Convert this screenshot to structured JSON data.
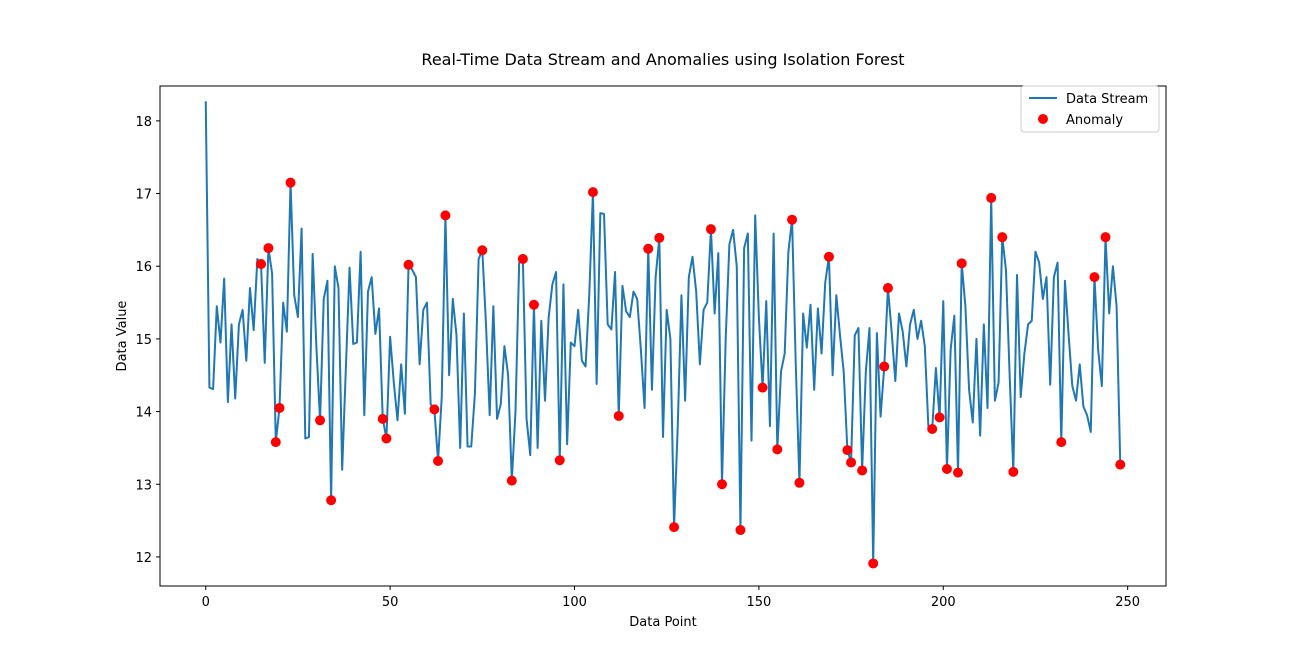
{
  "chart_data": {
    "type": "line",
    "title": "Real-Time Data Stream and Anomalies using Isolation Forest",
    "xlabel": "Data Point",
    "ylabel": "Data Value",
    "xlim": [
      -12.4,
      260.4
    ],
    "ylim": [
      11.6,
      18.48
    ],
    "xticks": [
      0,
      50,
      100,
      150,
      200,
      250
    ],
    "yticks": [
      12,
      13,
      14,
      15,
      16,
      17,
      18
    ],
    "legend": "upper right",
    "series": [
      {
        "name": "Data Stream",
        "type": "line",
        "color": "#1f77b4",
        "x": [
          0,
          1,
          2,
          3,
          4,
          5,
          6,
          7,
          8,
          9,
          10,
          11,
          12,
          13,
          14,
          15,
          16,
          17,
          18,
          19,
          20,
          21,
          22,
          23,
          24,
          25,
          26,
          27,
          28,
          29,
          30,
          31,
          32,
          33,
          34,
          35,
          36,
          37,
          38,
          39,
          40,
          41,
          42,
          43,
          44,
          45,
          46,
          47,
          48,
          49,
          50,
          51,
          52,
          53,
          54,
          55,
          56,
          57,
          58,
          59,
          60,
          61,
          62,
          63,
          64,
          65,
          66,
          67,
          68,
          69,
          70,
          71,
          72,
          73,
          74,
          75,
          76,
          77,
          78,
          79,
          80,
          81,
          82,
          83,
          84,
          85,
          86,
          87,
          88,
          89,
          90,
          91,
          92,
          93,
          94,
          95,
          96,
          97,
          98,
          99,
          100,
          101,
          102,
          103,
          104,
          105,
          106,
          107,
          108,
          109,
          110,
          111,
          112,
          113,
          114,
          115,
          116,
          117,
          118,
          119,
          120,
          121,
          122,
          123,
          124,
          125,
          126,
          127,
          128,
          129,
          130,
          131,
          132,
          133,
          134,
          135,
          136,
          137,
          138,
          139,
          140,
          141,
          142,
          143,
          144,
          145,
          146,
          147,
          148,
          149,
          150,
          151,
          152,
          153,
          154,
          155,
          156,
          157,
          158,
          159,
          160,
          161,
          162,
          163,
          164,
          165,
          166,
          167,
          168,
          169,
          170,
          171,
          172,
          173,
          174,
          175,
          176,
          177,
          178,
          179,
          180,
          181,
          182,
          183,
          184,
          185,
          186,
          187,
          188,
          189,
          190,
          191,
          192,
          193,
          194,
          195,
          196,
          197,
          198,
          199,
          200,
          201,
          202,
          203,
          204,
          205,
          206,
          207,
          208,
          209,
          210,
          211,
          212,
          213,
          214,
          215,
          216,
          217,
          218,
          219,
          220,
          221,
          222,
          223,
          224,
          225,
          226,
          227,
          228,
          229,
          230,
          231,
          232,
          233,
          234,
          235,
          236,
          237,
          238,
          239,
          240,
          241,
          242,
          243,
          244,
          245,
          246,
          247,
          248
        ],
        "values": [
          18.27,
          14.33,
          14.31,
          15.45,
          14.95,
          15.83,
          14.13,
          15.2,
          14.18,
          15.2,
          15.4,
          14.7,
          15.7,
          15.12,
          16.1,
          16.03,
          14.67,
          16.25,
          15.9,
          13.58,
          14.05,
          15.5,
          15.1,
          17.15,
          15.6,
          15.3,
          16.52,
          13.63,
          13.65,
          16.17,
          14.9,
          13.88,
          15.55,
          15.8,
          12.78,
          16.0,
          15.7,
          13.2,
          14.6,
          15.98,
          14.93,
          14.95,
          16.2,
          13.95,
          15.65,
          15.85,
          15.07,
          15.42,
          13.9,
          13.63,
          15.03,
          14.4,
          13.88,
          14.65,
          13.97,
          16.02,
          15.95,
          15.85,
          14.65,
          15.4,
          15.5,
          14.1,
          14.03,
          13.32,
          14.2,
          16.7,
          14.5,
          15.55,
          15.05,
          13.5,
          15.35,
          13.52,
          13.52,
          14.25,
          16.1,
          16.22,
          15.2,
          13.95,
          15.45,
          13.9,
          14.1,
          14.9,
          14.5,
          13.05,
          14.0,
          16.05,
          16.1,
          13.9,
          13.4,
          15.47,
          13.5,
          15.25,
          14.15,
          15.3,
          15.75,
          15.92,
          13.33,
          15.75,
          13.55,
          14.95,
          14.9,
          15.4,
          14.7,
          14.62,
          15.6,
          17.02,
          14.38,
          16.73,
          16.72,
          15.2,
          15.13,
          15.92,
          13.94,
          15.73,
          15.38,
          15.3,
          15.65,
          15.55,
          14.85,
          14.05,
          16.24,
          14.3,
          15.85,
          16.39,
          13.65,
          15.4,
          15.0,
          12.41,
          13.8,
          15.6,
          14.15,
          15.85,
          16.13,
          15.65,
          14.65,
          15.4,
          15.5,
          16.51,
          15.35,
          16.18,
          13.0,
          15.0,
          16.3,
          16.5,
          16.0,
          12.37,
          16.25,
          16.45,
          13.6,
          16.7,
          15.3,
          14.33,
          15.52,
          13.8,
          16.45,
          13.48,
          14.55,
          14.8,
          16.2,
          16.64,
          14.65,
          13.02,
          15.35,
          14.88,
          15.47,
          14.3,
          15.42,
          14.8,
          15.78,
          16.13,
          14.5,
          15.6,
          15.05,
          14.55,
          13.47,
          13.3,
          15.05,
          15.15,
          13.19,
          14.55,
          15.15,
          11.91,
          15.08,
          13.93,
          14.62,
          15.7,
          15.1,
          14.42,
          15.35,
          15.1,
          14.62,
          15.2,
          15.4,
          15.0,
          15.25,
          14.9,
          13.75,
          13.76,
          14.6,
          13.92,
          15.52,
          13.21,
          14.85,
          15.32,
          13.16,
          16.04,
          15.45,
          14.3,
          13.85,
          15.0,
          13.67,
          15.2,
          14.05,
          16.94,
          14.15,
          14.4,
          16.4,
          15.95,
          14.5,
          13.17,
          15.88,
          14.2,
          14.8,
          15.2,
          15.25,
          16.2,
          16.05,
          15.55,
          15.85,
          14.37,
          15.85,
          16.05,
          13.58,
          15.8,
          15.05,
          14.35,
          14.15,
          14.65,
          14.07,
          13.95,
          13.72,
          15.85,
          14.85,
          14.35,
          16.4,
          15.35,
          16.0,
          15.45,
          13.27
        ]
      },
      {
        "name": "Anomaly",
        "type": "scatter",
        "color": "#ff0000",
        "x": [
          15,
          17,
          19,
          20,
          23,
          31,
          34,
          48,
          49,
          55,
          62,
          63,
          65,
          75,
          83,
          86,
          89,
          96,
          105,
          112,
          120,
          123,
          127,
          137,
          140,
          145,
          151,
          155,
          159,
          161,
          169,
          174,
          175,
          178,
          181,
          184,
          185,
          197,
          199,
          201,
          204,
          205,
          213,
          216,
          219,
          232,
          241,
          244,
          248
        ],
        "values": [
          16.03,
          16.25,
          13.58,
          14.05,
          17.15,
          13.88,
          12.78,
          13.9,
          13.63,
          16.02,
          14.03,
          13.32,
          16.7,
          16.22,
          13.05,
          16.1,
          15.47,
          13.33,
          17.02,
          13.94,
          16.24,
          16.39,
          12.41,
          16.51,
          13.0,
          12.37,
          14.33,
          13.48,
          16.64,
          13.02,
          16.13,
          13.47,
          13.3,
          13.19,
          11.91,
          14.62,
          15.7,
          13.76,
          13.92,
          13.21,
          13.16,
          16.04,
          16.94,
          16.4,
          13.17,
          13.58,
          15.85,
          16.4,
          13.27
        ]
      }
    ]
  }
}
